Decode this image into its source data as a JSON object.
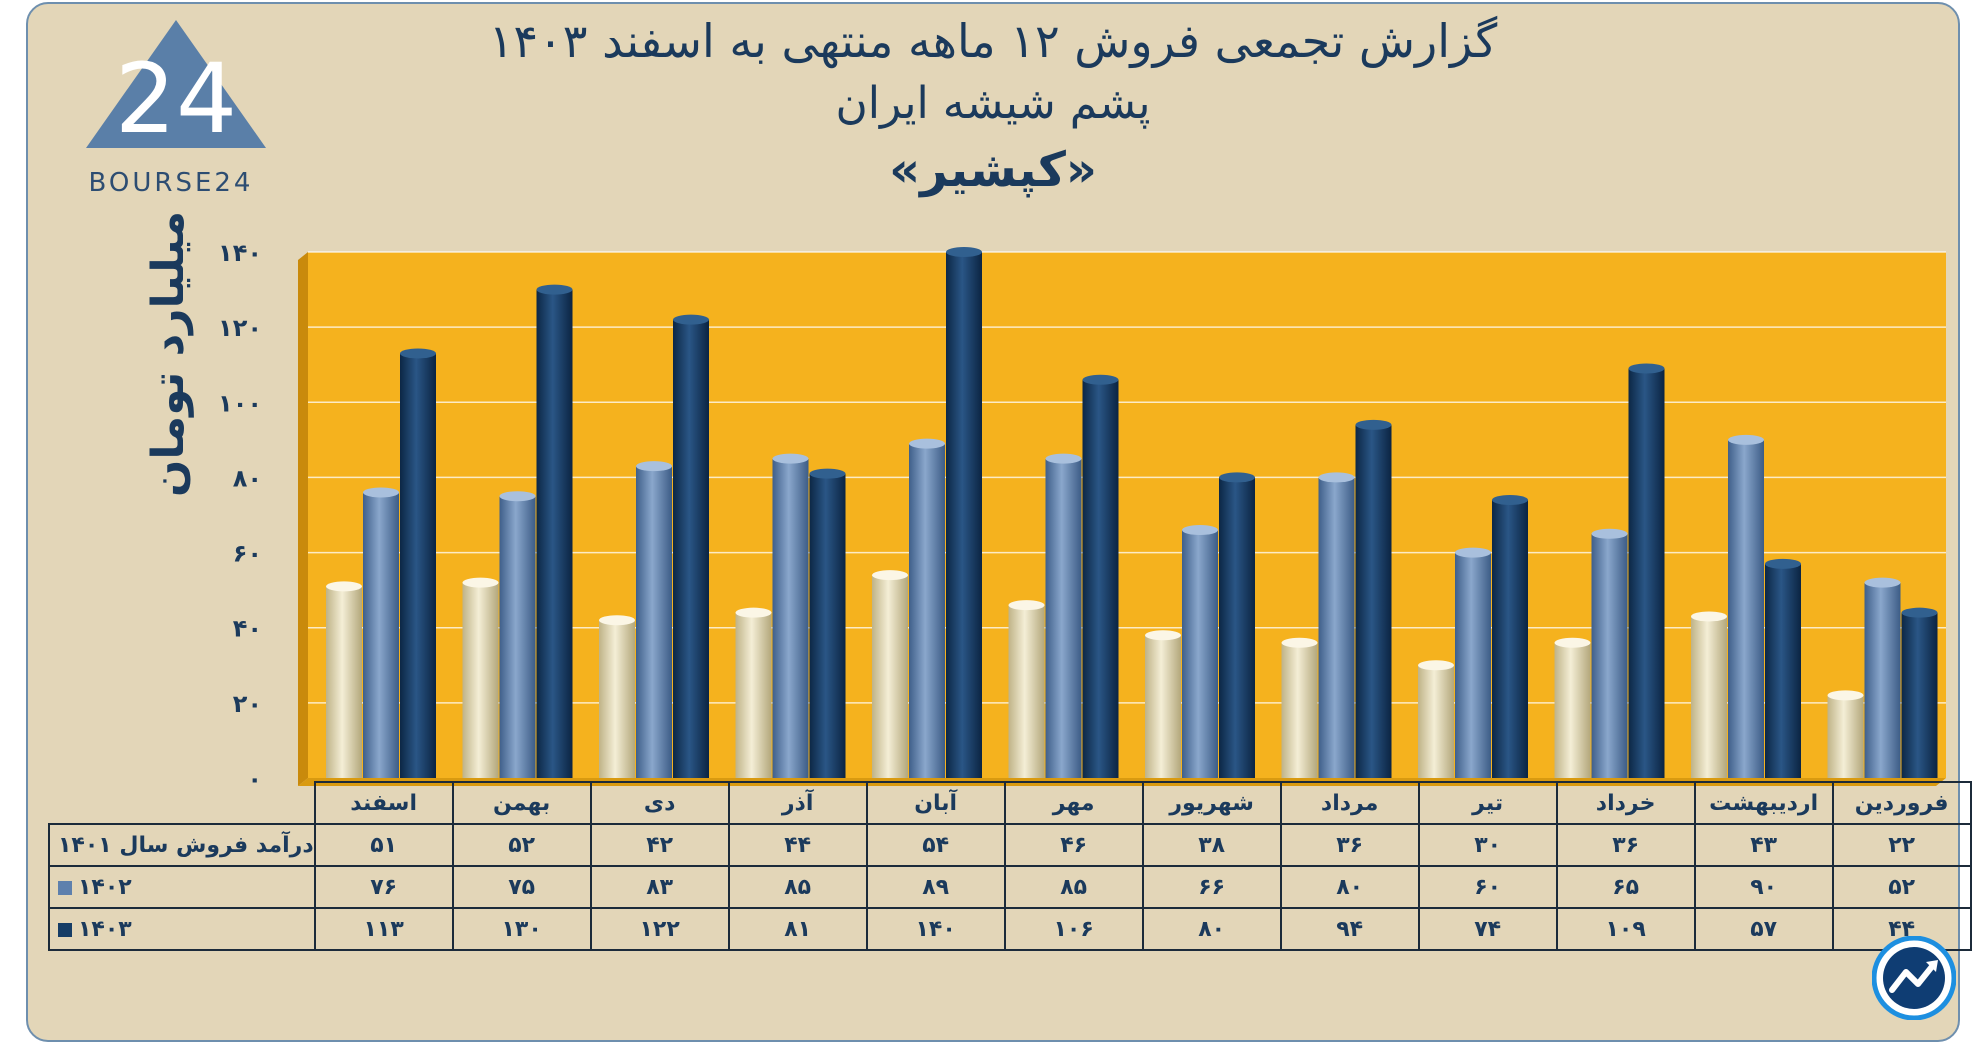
{
  "title": {
    "line1": "گزارش تجمعی فروش ۱۲ ماهه منتهی به اسفند ۱۴۰۳",
    "line2": "پشم شیشه ایران",
    "line3": "«کپشیر»"
  },
  "logo": {
    "text": "BOURSE24",
    "mark": "24"
  },
  "colors": {
    "plot_bg": "#f5b21e",
    "s1401": "#e6dcb6",
    "s1402": "#5e80ad",
    "s1403": "#163d66"
  },
  "chart_data": {
    "type": "bar",
    "title": "گزارش تجمعی فروش ۱۲ ماهه منتهی به اسفند ۱۴۰۳",
    "ylabel": "میلیارد تومان",
    "ylim": [
      0,
      140
    ],
    "yticks": [
      "۰",
      "۲۰",
      "۴۰",
      "۶۰",
      "۸۰",
      "۱۰۰",
      "۱۲۰",
      "۱۴۰"
    ],
    "categories": [
      "فروردین",
      "اردیبهشت",
      "خرداد",
      "تیر",
      "مرداد",
      "شهریور",
      "مهر",
      "آبان",
      "آذر",
      "دی",
      "بهمن",
      "اسفند"
    ],
    "series": [
      {
        "name": "درآمد فروش سال ۱۴۰۱",
        "values": [
          22,
          43,
          36,
          30,
          36,
          38,
          46,
          54,
          44,
          42,
          52,
          51
        ],
        "labels": [
          "۲۲",
          "۴۳",
          "۳۶",
          "۳۰",
          "۳۶",
          "۳۸",
          "۴۶",
          "۵۴",
          "۴۴",
          "۴۲",
          "۵۲",
          "۵۱"
        ]
      },
      {
        "name": "۱۴۰۲",
        "values": [
          52,
          90,
          65,
          60,
          80,
          66,
          85,
          89,
          85,
          83,
          75,
          76
        ],
        "labels": [
          "۵۲",
          "۹۰",
          "۶۵",
          "۶۰",
          "۸۰",
          "۶۶",
          "۸۵",
          "۸۹",
          "۸۵",
          "۸۳",
          "۷۵",
          "۷۶"
        ]
      },
      {
        "name": "۱۴۰۳",
        "values": [
          44,
          57,
          109,
          74,
          94,
          80,
          106,
          140,
          81,
          122,
          130,
          113
        ],
        "labels": [
          "۴۴",
          "۵۷",
          "۱۰۹",
          "۷۴",
          "۹۴",
          "۸۰",
          "۱۰۶",
          "۱۴۰",
          "۸۱",
          "۱۲۲",
          "۱۳۰",
          "۱۱۳"
        ]
      }
    ]
  }
}
